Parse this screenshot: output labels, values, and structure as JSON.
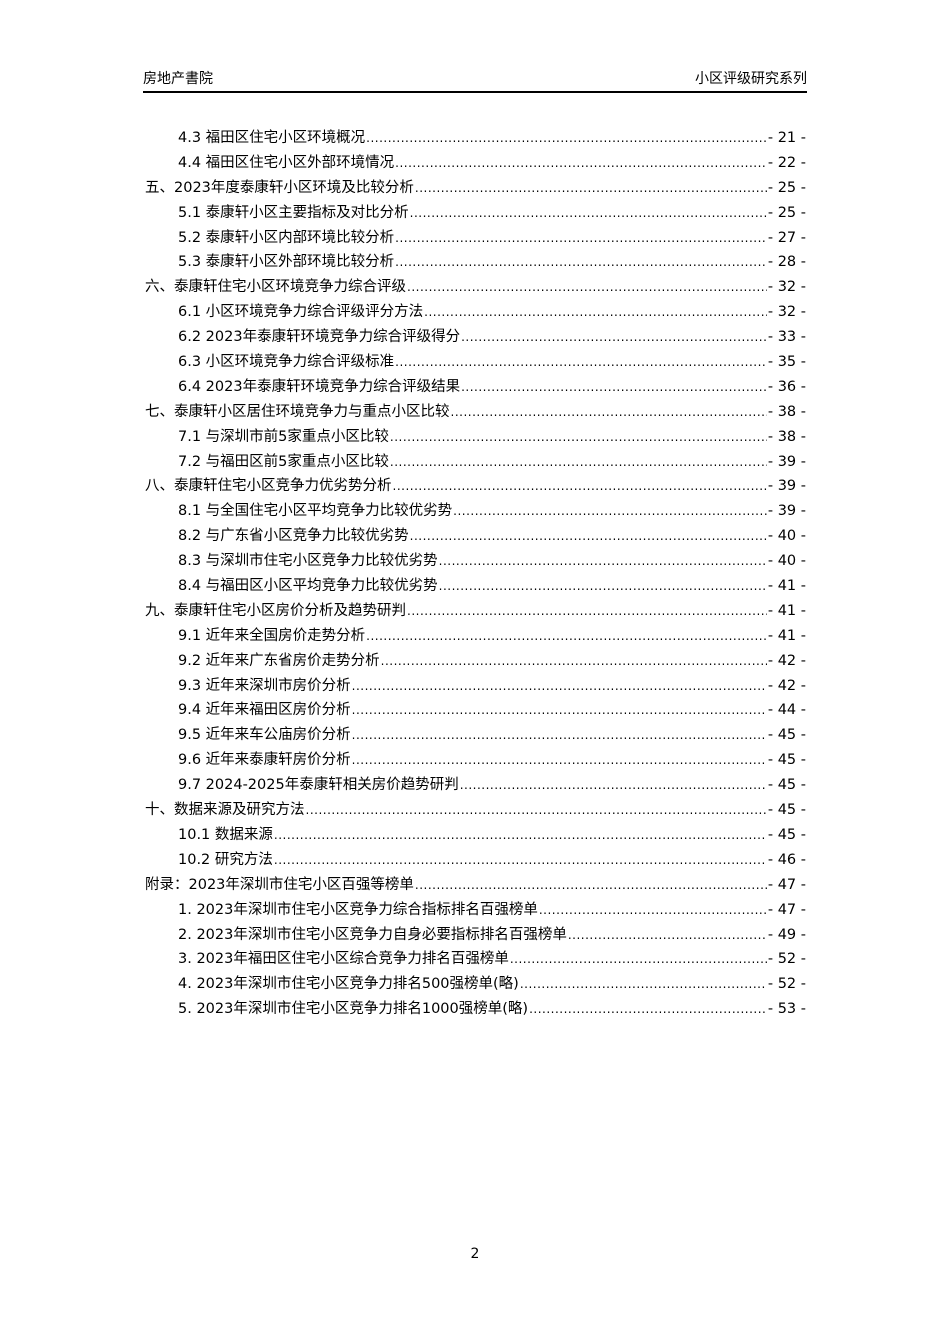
{
  "header": {
    "left": "房地产書院",
    "right": "小区评级研究系列"
  },
  "toc": [
    {
      "level": 2,
      "title": "4.3 福田区住宅小区环境概况",
      "page": "- 21 -"
    },
    {
      "level": 2,
      "title": "4.4 福田区住宅小区外部环境情况",
      "page": "- 22 -"
    },
    {
      "level": 1,
      "title": "五、2023年度泰康轩小区环境及比较分析",
      "page": "- 25 -"
    },
    {
      "level": 2,
      "title": "5.1 泰康轩小区主要指标及对比分析",
      "page": "- 25 -"
    },
    {
      "level": 2,
      "title": "5.2 泰康轩小区内部环境比较分析",
      "page": "- 27 -"
    },
    {
      "level": 2,
      "title": "5.3 泰康轩小区外部环境比较分析",
      "page": "- 28 -"
    },
    {
      "level": 1,
      "title": "六、泰康轩住宅小区环境竞争力综合评级",
      "page": "- 32 -"
    },
    {
      "level": 2,
      "title": "6.1 小区环境竞争力综合评级评分方法",
      "page": "- 32 -"
    },
    {
      "level": 2,
      "title": "6.2 2023年泰康轩环境竞争力综合评级得分",
      "page": "- 33 -"
    },
    {
      "level": 2,
      "title": "6.3 小区环境竞争力综合评级标准",
      "page": "- 35 -"
    },
    {
      "level": 2,
      "title": "6.4 2023年泰康轩环境竞争力综合评级结果",
      "page": "- 36 -"
    },
    {
      "level": 1,
      "title": "七、泰康轩小区居住环境竞争力与重点小区比较",
      "page": "- 38 -"
    },
    {
      "level": 2,
      "title": "7.1 与深圳市前5家重点小区比较",
      "page": "- 38 -"
    },
    {
      "level": 2,
      "title": "7.2 与福田区前5家重点小区比较",
      "page": "- 39 -"
    },
    {
      "level": 1,
      "title": "八、泰康轩住宅小区竞争力优劣势分析",
      "page": "- 39 -"
    },
    {
      "level": 2,
      "title": "8.1 与全国住宅小区平均竞争力比较优劣势",
      "page": "- 39 -"
    },
    {
      "level": 2,
      "title": "8.2 与广东省小区竞争力比较优劣势",
      "page": "- 40 -"
    },
    {
      "level": 2,
      "title": "8.3 与深圳市住宅小区竞争力比较优劣势",
      "page": "- 40 -"
    },
    {
      "level": 2,
      "title": "8.4 与福田区小区平均竞争力比较优劣势",
      "page": "- 41 -"
    },
    {
      "level": 1,
      "title": "九、泰康轩住宅小区房价分析及趋势研判",
      "page": "- 41 -"
    },
    {
      "level": 2,
      "title": "9.1 近年来全国房价走势分析",
      "page": "- 41 -"
    },
    {
      "level": 2,
      "title": "9.2 近年来广东省房价走势分析",
      "page": "- 42 -"
    },
    {
      "level": 2,
      "title": "9.3 近年来深圳市房价分析",
      "page": "- 42 -"
    },
    {
      "level": 2,
      "title": "9.4 近年来福田区房价分析",
      "page": "- 44 -"
    },
    {
      "level": 2,
      "title": "9.5 近年来车公庙房价分析",
      "page": "- 45 -"
    },
    {
      "level": 2,
      "title": "9.6 近年来泰康轩房价分析",
      "page": "- 45 -"
    },
    {
      "level": 2,
      "title": "9.7 2024-2025年泰康轩相关房价趋势研判",
      "page": "- 45 -"
    },
    {
      "level": 1,
      "title": "十、数据来源及研究方法",
      "page": "- 45 -"
    },
    {
      "level": 2,
      "title": "10.1 数据来源",
      "page": "- 45 -"
    },
    {
      "level": 2,
      "title": "10.2 研究方法",
      "page": "- 46 -"
    },
    {
      "level": 1,
      "title": "附录：2023年深圳市住宅小区百强等榜单",
      "page": "- 47 -"
    },
    {
      "level": 2,
      "title": "1. 2023年深圳市住宅小区竞争力综合指标排名百强榜单",
      "page": "- 47 -"
    },
    {
      "level": 2,
      "title": "2. 2023年深圳市住宅小区竞争力自身必要指标排名百强榜单",
      "page": "- 49 -"
    },
    {
      "level": 2,
      "title": "3. 2023年福田区住宅小区综合竞争力排名百强榜单",
      "page": "- 52 -"
    },
    {
      "level": 2,
      "title": "4. 2023年深圳市住宅小区竞争力排名500强榜单(略)",
      "page": "- 52 -"
    },
    {
      "level": 2,
      "title": "5. 2023年深圳市住宅小区竞争力排名1000强榜单(略)",
      "page": "- 53 -"
    }
  ],
  "footer": {
    "page_number": "2"
  }
}
